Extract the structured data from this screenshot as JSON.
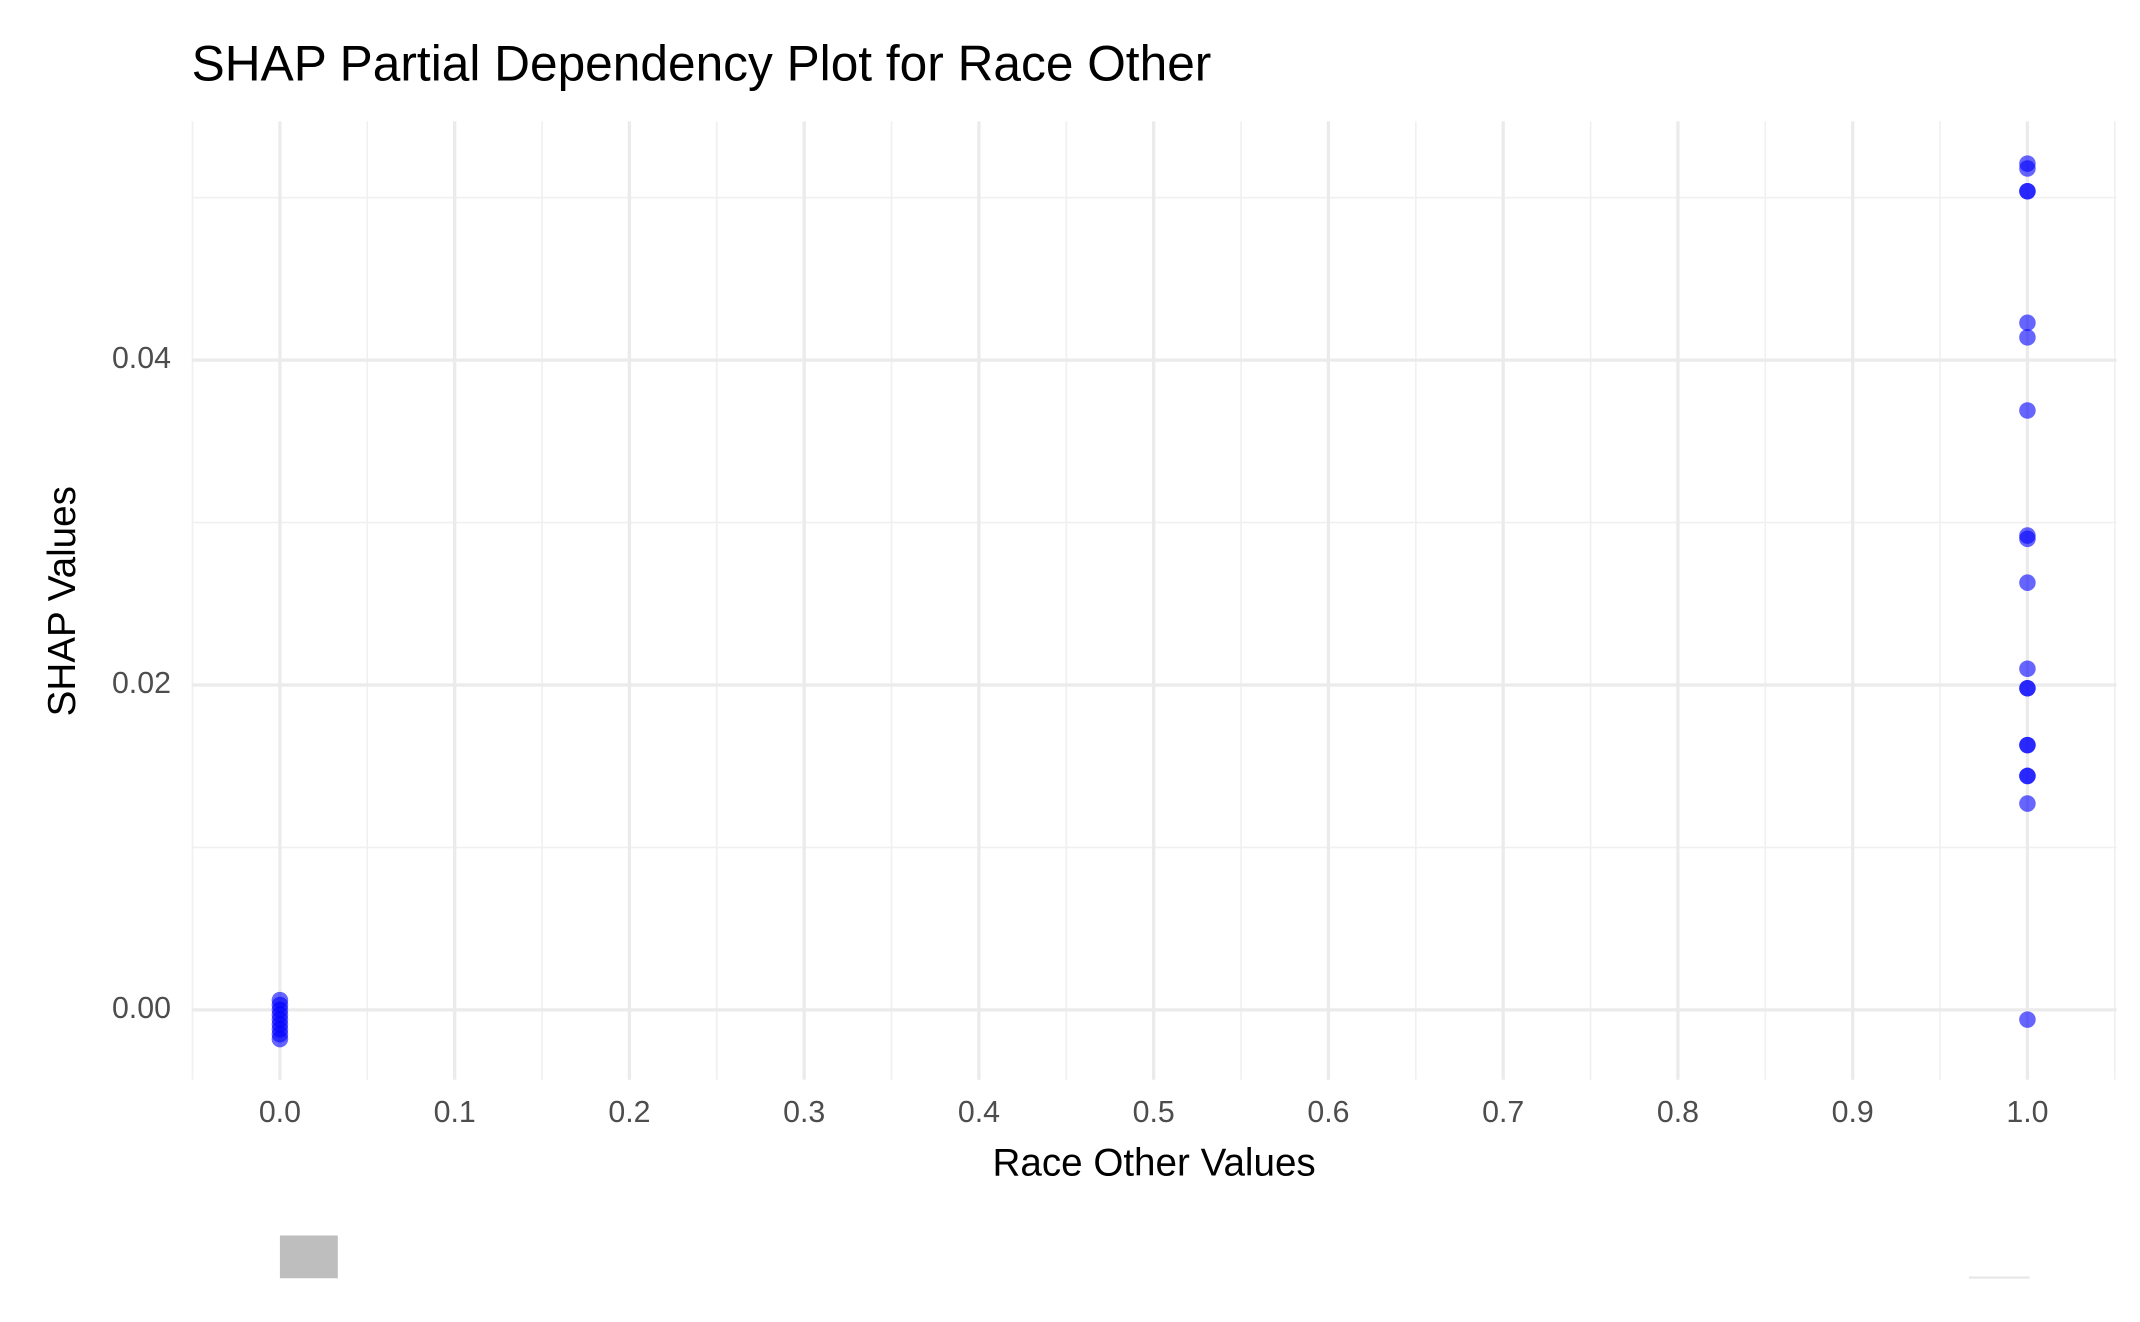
{
  "chart_data": {
    "type": "scatter",
    "title": "SHAP Partial Dependency Plot for Race Other",
    "x_label": "Race Other Values",
    "y_label": "SHAP Values",
    "series": [
      {
        "color": "#0000ff",
        "x": [
          0,
          0,
          0,
          0,
          0,
          0,
          0,
          0,
          0,
          1,
          1,
          1,
          1,
          1,
          1,
          1,
          1,
          1,
          1,
          1,
          1,
          1,
          1,
          1,
          1,
          1,
          1,
          1
        ],
        "values": [
          0.0006,
          0.0003,
          0,
          -0.0003,
          -0.0006,
          -0.0009,
          -0.0012,
          -0.0015,
          -0.0018,
          0.0521,
          0.0518,
          0.0504,
          0.0504,
          0.0423,
          0.0414,
          0.0369,
          0.0292,
          0.029,
          0.0263,
          0.021,
          0.0198,
          0.0198,
          0.0163,
          0.0163,
          0.0144,
          0.0144,
          0.0127,
          -0.0006
        ]
      }
    ],
    "xlim": [
      -0.0505,
      1.051
    ],
    "ylim": [
      -0.0043,
      0.0547
    ],
    "xticks": [
      {
        "value": 0,
        "label": "0.0"
      },
      0.1,
      0.2,
      0.3,
      0.4,
      0.5,
      0.6,
      0.7,
      0.8,
      0.9,
      {
        "value": 1,
        "label": "1.0"
      }
    ],
    "yticks": [
      {
        "value": 0,
        "label": "0.00"
      },
      {
        "value": 0.02,
        "label": "0.02"
      },
      {
        "value": 0.04,
        "label": "0.04"
      }
    ],
    "grid": true
  }
}
